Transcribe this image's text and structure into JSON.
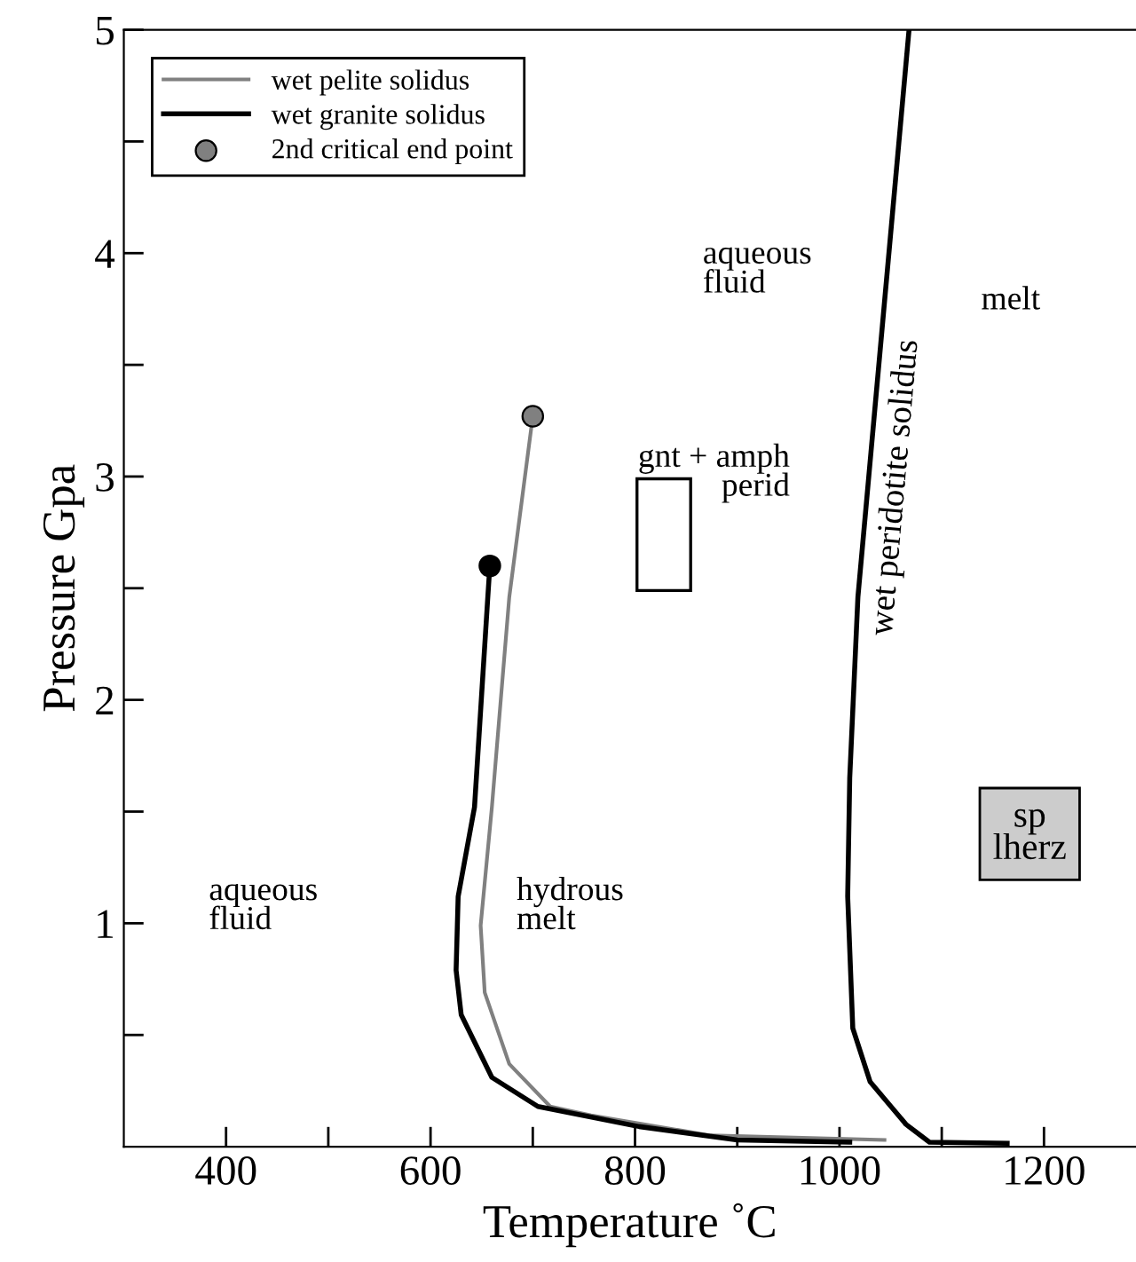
{
  "chart_data": {
    "type": "line",
    "xlabel": "Temperature ˚C",
    "ylabel": "Pressure Gpa",
    "xlim": [
      300,
      1290
    ],
    "ylim": [
      0,
      5
    ],
    "xticks": [
      400,
      {
        "value": 500,
        "label": null
      },
      600,
      {
        "value": 700,
        "label": null
      },
      800,
      {
        "value": 900,
        "label": null
      },
      1000,
      {
        "value": 1100,
        "label": null
      },
      1200
    ],
    "yticks": [
      {
        "value": 0.5,
        "label": null
      },
      1,
      {
        "value": 1.5,
        "label": null
      },
      2,
      {
        "value": 2.5,
        "label": null
      },
      3,
      {
        "value": 3.5,
        "label": null
      },
      4,
      {
        "value": 4.5,
        "label": null
      },
      5
    ],
    "grid": false,
    "legend": "top left",
    "marker": "none",
    "line_style": "solid",
    "series": [
      {
        "name": "wet pelite solidus",
        "color": "#808080",
        "x": [
          1044,
          874,
          757,
          717,
          677,
          653,
          649,
          660,
          677,
          700
        ],
        "values": [
          0.03,
          0.05,
          0.14,
          0.18,
          0.37,
          0.69,
          0.99,
          1.52,
          2.46,
          3.27
        ]
      },
      {
        "name": "wet granite solidus",
        "color": "#000000",
        "x": [
          1010,
          900,
          804,
          705,
          660,
          630,
          625,
          627,
          643,
          656,
          658
        ],
        "values": [
          0.02,
          0.03,
          0.09,
          0.18,
          0.31,
          0.59,
          0.79,
          1.12,
          1.52,
          2.46,
          2.6
        ]
      },
      {
        "name": "wet peridotite solidus",
        "color": "#000000",
        "x": [
          1164,
          1088,
          1065,
          1030,
          1013,
          1008,
          1010,
          1018,
          1068
        ],
        "values": [
          0.015,
          0.02,
          0.1,
          0.29,
          0.53,
          1.12,
          1.65,
          2.46,
          5
        ]
      },
      {
        "name": "2nd critical end point",
        "type": "scatter",
        "marker": "circle",
        "colors": [
          "#808080",
          "#000000"
        ],
        "color": "#808080",
        "x": [
          700,
          658
        ],
        "values": [
          3.27,
          2.6
        ]
      }
    ],
    "annotations": [
      "aqueous\nfluid",
      "hydrous\nmelt",
      "aqueous\nfluid",
      "melt",
      "gnt + amph\nperid",
      "sp\nlherz"
    ]
  }
}
